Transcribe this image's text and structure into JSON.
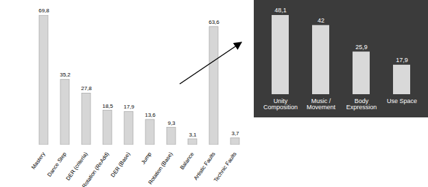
{
  "chart_data": [
    {
      "type": "bar",
      "categories": [
        "Mastery",
        "Dance Step",
        "DER (criteria)",
        "Rotation (ReAdd)",
        "DER (Base)",
        "Jump",
        "Rotation (Base)",
        "Balance",
        "Artistic Faults",
        "Technic Faults"
      ],
      "values": [
        69.8,
        35.2,
        27.8,
        18.5,
        17.9,
        13.6,
        9.3,
        3.1,
        63.6,
        3.7
      ],
      "value_labels": [
        "69,8",
        "35,2",
        "27,8",
        "18,5",
        "17,9",
        "13,6",
        "9,3",
        "3,1",
        "63,6",
        "3,7"
      ],
      "color": "#d6d6d6",
      "data_labels": true,
      "tick_labels": "x"
    },
    {
      "type": "bar",
      "categories": [
        "Unity Composition",
        "Music / Movement",
        "Body Expression",
        "Use Space"
      ],
      "values": [
        48.1,
        42,
        25.9,
        17.9
      ],
      "value_labels": [
        "48,1",
        "42",
        "25,9",
        "17,9"
      ],
      "color": "#d9d9d9",
      "data_labels": true,
      "tick_labels": "x"
    }
  ]
}
